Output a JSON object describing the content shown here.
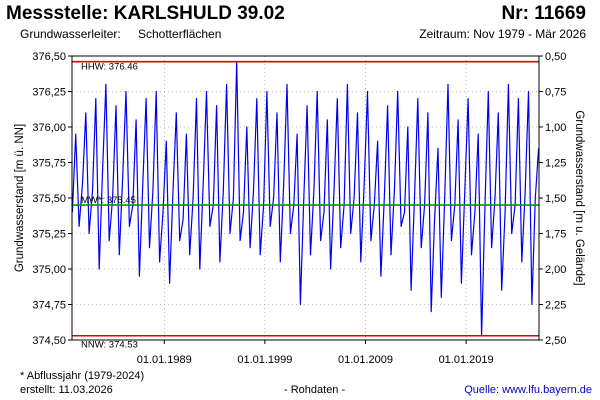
{
  "header": {
    "title": "Messstelle: KARLSHULD 39.02",
    "number": "Nr: 11669",
    "aquifer_label": "Grundwasserleiter:",
    "aquifer_value": "Schotterflächen",
    "period": "Zeitraum: Nov 1979 - Mär 2026"
  },
  "footer": {
    "note": "* Abflussjahr (1979-2024)",
    "created": "erstellt:  11.03.2026",
    "data_kind": "- Rohdaten -",
    "source": "Quelle: www.lfu.bayern.de"
  },
  "colors": {
    "series": "#0000ee",
    "reference_lines": "#e00000",
    "mean_line": "#009900",
    "grid": "#000000"
  },
  "chart_data": {
    "type": "line",
    "ylabel_left": "Grundwasserstand [m ü. NN]",
    "ylabel_right": "Grundwasserstand [m u. Gelände]",
    "ylim": [
      374.5,
      376.5
    ],
    "yticks_left": [
      "376,50",
      "376,25",
      "376,00",
      "375,75",
      "375,50",
      "375,25",
      "375,00",
      "374,75",
      "374,50"
    ],
    "yticks_left_values": [
      376.5,
      376.25,
      376.0,
      375.75,
      375.5,
      375.25,
      375.0,
      374.75,
      374.5
    ],
    "yticks_right": [
      "0,50",
      "0,75",
      "1,00",
      "1,25",
      "1,50",
      "1,75",
      "2,00",
      "2,25",
      "2,50"
    ],
    "xlim": [
      "1979-11-01",
      "2026-03-31"
    ],
    "xticks": [
      "01.01.1989",
      "01.01.1999",
      "01.01.2009",
      "01.01.2019"
    ],
    "xticks_dates": [
      "1989-01-01",
      "1999-01-01",
      "2009-01-01",
      "2019-01-01"
    ],
    "grid": "dotted",
    "reference_lines": [
      {
        "label": "HHW: 376.46",
        "value": 376.46,
        "color": "#e00000"
      },
      {
        "label": "MW*: 375.45",
        "value": 375.45,
        "color": "#009900"
      },
      {
        "label": "NNW: 374.53",
        "value": 374.53,
        "color": "#e00000"
      }
    ],
    "series": [
      {
        "x": [
          "1979-11",
          "1980-03",
          "1980-07",
          "1980-11",
          "1981-03",
          "1981-07",
          "1981-11",
          "1982-03",
          "1982-07",
          "1982-11",
          "1983-03",
          "1983-07",
          "1983-11",
          "1984-03",
          "1984-07",
          "1984-11",
          "1985-03",
          "1985-07",
          "1985-11",
          "1986-03",
          "1986-07",
          "1986-11",
          "1987-03",
          "1987-07",
          "1987-11",
          "1988-03",
          "1988-07",
          "1988-11",
          "1989-03",
          "1989-07",
          "1989-11",
          "1990-03",
          "1990-07",
          "1990-11",
          "1991-03",
          "1991-07",
          "1991-11",
          "1992-03",
          "1992-07",
          "1992-11",
          "1993-03",
          "1993-07",
          "1993-11",
          "1994-03",
          "1994-07",
          "1994-11",
          "1995-03",
          "1995-07",
          "1995-11",
          "1996-03",
          "1996-07",
          "1996-11",
          "1997-03",
          "1997-07",
          "1997-11",
          "1998-03",
          "1998-07",
          "1998-11",
          "1999-03",
          "1999-07",
          "1999-11",
          "2000-03",
          "2000-07",
          "2000-11",
          "2001-03",
          "2001-07",
          "2001-11",
          "2002-03",
          "2002-07",
          "2002-11",
          "2003-03",
          "2003-07",
          "2003-11",
          "2004-03",
          "2004-07",
          "2004-11",
          "2005-03",
          "2005-07",
          "2005-11",
          "2006-03",
          "2006-07",
          "2006-11",
          "2007-03",
          "2007-07",
          "2007-11",
          "2008-03",
          "2008-07",
          "2008-11",
          "2009-03",
          "2009-07",
          "2009-11",
          "2010-03",
          "2010-07",
          "2010-11",
          "2011-03",
          "2011-07",
          "2011-11",
          "2012-03",
          "2012-07",
          "2012-11",
          "2013-03",
          "2013-07",
          "2013-11",
          "2014-03",
          "2014-07",
          "2014-11",
          "2015-03",
          "2015-07",
          "2015-11",
          "2016-03",
          "2016-07",
          "2016-11",
          "2017-03",
          "2017-07",
          "2017-11",
          "2018-03",
          "2018-07",
          "2018-11",
          "2019-03",
          "2019-07",
          "2019-11",
          "2020-03",
          "2020-07",
          "2020-11",
          "2021-03",
          "2021-07",
          "2021-11",
          "2022-03",
          "2022-07",
          "2022-11",
          "2023-03",
          "2023-07",
          "2023-11",
          "2024-03",
          "2024-07",
          "2024-11",
          "2025-03",
          "2025-07",
          "2025-11",
          "2026-03"
        ],
        "y": [
          375.4,
          375.95,
          375.3,
          375.6,
          376.1,
          375.25,
          375.55,
          376.2,
          375.0,
          375.7,
          376.3,
          375.2,
          375.5,
          376.15,
          375.1,
          375.65,
          376.25,
          375.3,
          375.45,
          376.05,
          374.95,
          375.6,
          376.2,
          375.15,
          375.55,
          376.25,
          375.05,
          375.4,
          375.9,
          374.9,
          375.55,
          376.1,
          375.2,
          375.35,
          375.95,
          375.1,
          375.5,
          376.2,
          375.0,
          375.6,
          376.25,
          375.3,
          375.45,
          376.15,
          375.05,
          375.55,
          376.3,
          375.25,
          375.5,
          376.46,
          375.2,
          375.4,
          376.0,
          375.15,
          375.55,
          376.2,
          375.1,
          375.45,
          376.25,
          375.3,
          375.5,
          376.1,
          375.05,
          375.6,
          376.3,
          375.25,
          375.45,
          375.95,
          374.75,
          375.5,
          376.15,
          375.1,
          375.55,
          376.25,
          375.2,
          375.4,
          376.05,
          375.0,
          375.55,
          376.2,
          375.15,
          375.45,
          376.3,
          375.25,
          375.5,
          376.1,
          375.05,
          375.6,
          376.25,
          375.2,
          375.45,
          375.9,
          374.95,
          375.5,
          376.15,
          375.1,
          375.55,
          376.25,
          375.3,
          375.4,
          376.0,
          374.85,
          375.5,
          376.2,
          375.15,
          375.45,
          376.1,
          374.7,
          375.35,
          375.85,
          374.8,
          375.5,
          376.3,
          375.2,
          375.45,
          376.05,
          374.9,
          375.55,
          376.2,
          375.1,
          375.4,
          375.95,
          374.53,
          375.45,
          376.25,
          375.15,
          375.5,
          376.1,
          374.85,
          375.4,
          376.3,
          375.25,
          375.45,
          376.2,
          375.05,
          375.55,
          376.25,
          374.75,
          375.5,
          375.85
        ]
      }
    ]
  }
}
